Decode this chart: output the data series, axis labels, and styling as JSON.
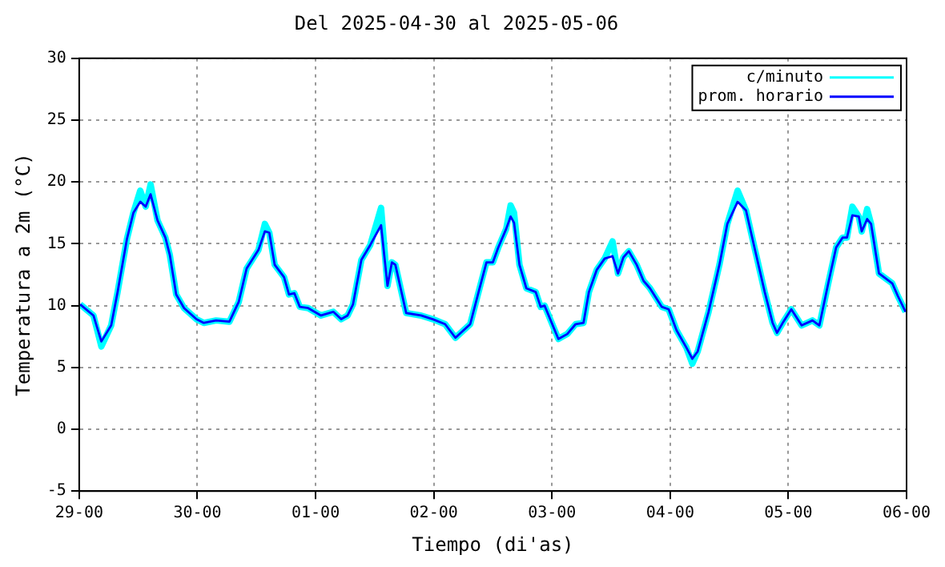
{
  "chart_data": {
    "type": "line",
    "title": "Del 2025-04-30 al 2025-05-06",
    "xlabel": "Tiempo (di'as)",
    "ylabel": "Temperatura a 2m (°C)",
    "x": [
      "2025-04-29T00:12",
      "2025-04-29T02:54",
      "2025-04-29T04:30",
      "2025-04-29T06:30",
      "2025-04-29T07:48",
      "2025-04-29T09:42",
      "2025-04-29T11:00",
      "2025-04-29T12:24",
      "2025-04-29T13:30",
      "2025-04-29T14:30",
      "2025-04-29T15:54",
      "2025-04-29T17:30",
      "2025-04-29T18:24",
      "2025-04-29T19:42",
      "2025-04-29T21:18",
      "2025-04-29T23:48",
      "2025-04-30T01:18",
      "2025-04-30T03:48",
      "2025-04-30T06:30",
      "2025-04-30T08:24",
      "2025-04-30T10:00",
      "2025-04-30T12:24",
      "2025-04-30T13:42",
      "2025-04-30T14:36",
      "2025-04-30T15:42",
      "2025-04-30T17:36",
      "2025-04-30T18:36",
      "2025-04-30T19:42",
      "2025-04-30T20:48",
      "2025-04-30T22:30",
      "2025-05-01T01:06",
      "2025-05-01T03:36",
      "2025-05-01T05:12",
      "2025-05-01T06:30",
      "2025-05-01T07:36",
      "2025-05-01T09:18",
      "2025-05-01T11:06",
      "2025-05-01T13:18",
      "2025-05-01T14:36",
      "2025-05-01T15:30",
      "2025-05-01T16:12",
      "2025-05-01T18:24",
      "2025-05-01T21:24",
      "2025-05-01T23:48",
      "2025-05-02T02:18",
      "2025-05-02T04:24",
      "2025-05-02T07:24",
      "2025-05-02T09:06",
      "2025-05-02T10:42",
      "2025-05-02T12:00",
      "2025-05-02T13:06",
      "2025-05-02T14:42",
      "2025-05-02T15:36",
      "2025-05-02T16:18",
      "2025-05-02T17:24",
      "2025-05-02T18:48",
      "2025-05-02T20:42",
      "2025-05-02T21:42",
      "2025-05-02T22:30",
      "2025-05-03T01:18",
      "2025-05-03T03:06",
      "2025-05-03T04:48",
      "2025-05-03T06:24",
      "2025-05-03T07:30",
      "2025-05-03T09:06",
      "2025-05-03T10:42",
      "2025-05-03T12:18",
      "2025-05-03T13:24",
      "2025-05-03T14:30",
      "2025-05-03T15:36",
      "2025-05-03T17:12",
      "2025-05-03T18:36",
      "2025-05-03T19:54",
      "2025-05-03T22:18",
      "2025-05-03T23:42",
      "2025-05-04T01:18",
      "2025-05-04T03:18",
      "2025-05-04T04:30",
      "2025-05-04T05:36",
      "2025-05-04T07:48",
      "2025-05-04T10:00",
      "2025-05-04T11:36",
      "2025-05-04T13:42",
      "2025-05-04T15:24",
      "2025-05-04T17:00",
      "2025-05-04T19:12",
      "2025-05-04T20:48",
      "2025-05-04T21:42",
      "2025-05-04T23:00",
      "2025-05-05T00:36",
      "2025-05-05T02:42",
      "2025-05-05T04:54",
      "2025-05-05T06:18",
      "2025-05-05T08:06",
      "2025-05-05T09:42",
      "2025-05-05T11:00",
      "2025-05-05T11:54",
      "2025-05-05T13:00",
      "2025-05-05T14:18",
      "2025-05-05T14:54",
      "2025-05-05T16:00",
      "2025-05-05T16:48",
      "2025-05-05T18:24",
      "2025-05-05T21:06",
      "2025-05-05T22:12",
      "2025-05-05T23:48"
    ],
    "series": [
      {
        "name": "c/minuto",
        "color": "#00ffff",
        "values": [
          10.1,
          9.2,
          6.7,
          8.4,
          11.1,
          15.4,
          17.5,
          19.3,
          18,
          19.8,
          16.9,
          15.5,
          14.1,
          10.9,
          9.8,
          8.9,
          8.6,
          8.8,
          8.7,
          10.3,
          13,
          14.5,
          16.6,
          15.9,
          13.3,
          12.3,
          10.9,
          11,
          9.9,
          9.8,
          9.2,
          9.5,
          8.9,
          9.2,
          10.1,
          13.7,
          14.9,
          17.9,
          11.6,
          13.5,
          13.3,
          9.4,
          9.2,
          8.9,
          8.5,
          7.4,
          8.5,
          11.1,
          13.5,
          13.5,
          14.7,
          16.2,
          18.1,
          17.5,
          13.3,
          11.4,
          11.1,
          9.9,
          10,
          7.3,
          7.7,
          8.5,
          8.6,
          11.1,
          12.9,
          13.8,
          15.2,
          12.6,
          13.9,
          14.4,
          13.3,
          12,
          11.4,
          9.9,
          9.7,
          8,
          6.6,
          5.3,
          6.3,
          9.5,
          13.3,
          16.6,
          19.3,
          17.7,
          14.9,
          11.1,
          8.6,
          7.8,
          8.7,
          9.7,
          8.4,
          8.8,
          8.4,
          11.8,
          14.7,
          15.5,
          15.5,
          18,
          17.2,
          16,
          17.8,
          16.6,
          12.6,
          11.8,
          10.8,
          9.5
        ]
      },
      {
        "name": "prom. horario",
        "color": "#0000ff",
        "values": [
          10.1,
          9.2,
          7.1,
          8.4,
          11.1,
          15.4,
          17.5,
          18.4,
          18,
          19,
          16.9,
          15.5,
          14.1,
          10.9,
          9.8,
          8.9,
          8.6,
          8.8,
          8.7,
          10.3,
          13,
          14.5,
          16,
          15.9,
          13.3,
          12.3,
          10.9,
          11,
          9.9,
          9.8,
          9.2,
          9.5,
          8.9,
          9.2,
          10.1,
          13.7,
          14.9,
          16.5,
          11.6,
          13.5,
          13.3,
          9.4,
          9.2,
          8.9,
          8.5,
          7.4,
          8.5,
          11.1,
          13.5,
          13.5,
          14.7,
          16.2,
          17.2,
          16.7,
          13.3,
          11.4,
          11.1,
          9.9,
          10,
          7.3,
          7.7,
          8.5,
          8.6,
          11.1,
          12.9,
          13.8,
          14,
          12.6,
          13.9,
          14.4,
          13.3,
          12,
          11.4,
          9.9,
          9.7,
          8,
          6.6,
          5.7,
          6.3,
          9.5,
          13.3,
          16.6,
          18.4,
          17.7,
          14.9,
          11.1,
          8.6,
          7.8,
          8.7,
          9.7,
          8.4,
          8.8,
          8.4,
          11.8,
          14.7,
          15.5,
          15.5,
          17.3,
          17.2,
          16,
          17,
          16.6,
          12.6,
          11.8,
          10.8,
          9.5
        ]
      }
    ],
    "xlim": [
      "2025-04-29T00:00",
      "2025-05-06T00:00"
    ],
    "xticks": [
      {
        "value": "2025-04-29T00:00",
        "label": "29-00"
      },
      {
        "value": "2025-04-30T00:00",
        "label": "30-00"
      },
      {
        "value": "2025-05-01T00:00",
        "label": "01-00"
      },
      {
        "value": "2025-05-02T00:00",
        "label": "02-00"
      },
      {
        "value": "2025-05-03T00:00",
        "label": "03-00"
      },
      {
        "value": "2025-05-04T00:00",
        "label": "04-00"
      },
      {
        "value": "2025-05-05T00:00",
        "label": "05-00"
      },
      {
        "value": "2025-05-06T00:00",
        "label": "06-00"
      }
    ],
    "ylim": [
      -5,
      30
    ],
    "yticks": [
      -5,
      0,
      5,
      10,
      15,
      20,
      25,
      30
    ],
    "grid": true,
    "legend": "top right",
    "marker": "none",
    "line_style": "solid"
  }
}
